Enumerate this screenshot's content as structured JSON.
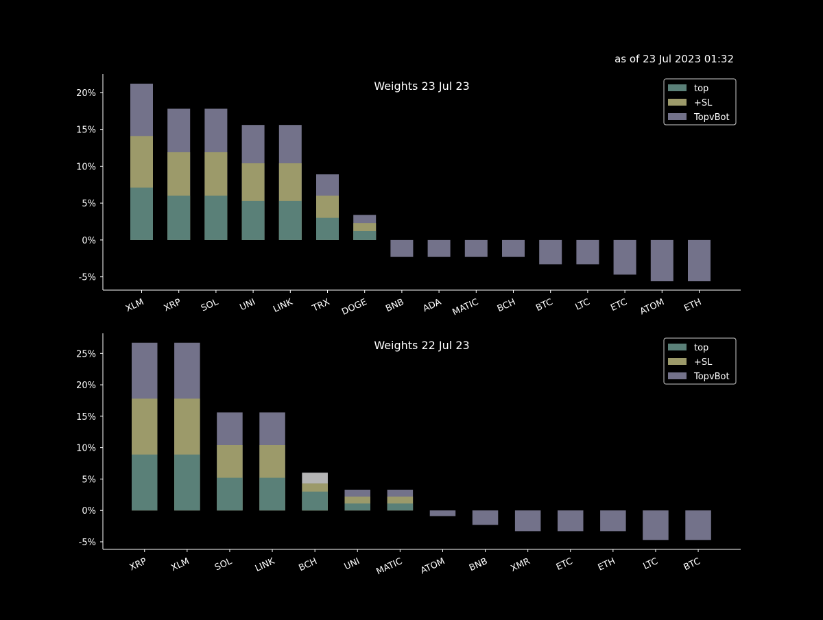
{
  "annotation": "as of 23 Jul 2023 01:32",
  "colors": {
    "background": "#000000",
    "axis": "#ffffff",
    "top": "#5a8078",
    "sl": "#9c9a6a",
    "topvbot": "#73728a",
    "highlight": "#b5b5b5"
  },
  "legend_labels": [
    "top",
    "+SL",
    "TopvBot"
  ],
  "chart_data": [
    {
      "type": "bar",
      "stacked": "overlay",
      "title": "Weights 23 Jul 23",
      "categories": [
        "XLM",
        "XRP",
        "SOL",
        "UNI",
        "LINK",
        "TRX",
        "DOGE",
        "BNB",
        "ADA",
        "MATIC",
        "BCH",
        "BTC",
        "LTC",
        "ETC",
        "ATOM",
        "ETH"
      ],
      "series": [
        {
          "name": "top",
          "values": [
            7.1,
            6.0,
            6.0,
            5.3,
            5.3,
            3.0,
            1.2,
            0,
            0,
            0,
            0,
            0,
            0,
            0,
            0,
            0
          ]
        },
        {
          "name": "+SL",
          "values": [
            14.1,
            11.9,
            11.9,
            10.4,
            10.4,
            6.0,
            2.3,
            0,
            0,
            0,
            0,
            0,
            0,
            0,
            0,
            0
          ]
        },
        {
          "name": "TopvBot",
          "values": [
            21.2,
            17.8,
            17.8,
            15.6,
            15.6,
            8.9,
            3.4,
            -2.3,
            -2.3,
            -2.3,
            -2.3,
            -3.3,
            -3.3,
            -4.7,
            -5.6,
            -5.6
          ]
        }
      ],
      "ylim": [
        -6.8,
        22.5
      ],
      "yticks": [
        -5,
        0,
        5,
        10,
        15,
        20
      ],
      "ytick_format": "%",
      "legend": "top-right",
      "grid": false
    },
    {
      "type": "bar",
      "stacked": "overlay",
      "title": "Weights 22 Jul 23",
      "categories": [
        "XRP",
        "XLM",
        "SOL",
        "LINK",
        "BCH",
        "UNI",
        "MATIC",
        "ATOM",
        "BNB",
        "XMR",
        "ETC",
        "ETH",
        "LTC",
        "BTC"
      ],
      "series": [
        {
          "name": "top",
          "values": [
            8.9,
            8.9,
            5.2,
            5.2,
            3.0,
            1.1,
            1.1,
            0,
            0,
            0,
            0,
            0,
            0,
            0
          ]
        },
        {
          "name": "+SL",
          "values": [
            17.8,
            17.8,
            10.4,
            10.4,
            4.3,
            2.2,
            2.2,
            0,
            0,
            0,
            0,
            0,
            0,
            0
          ]
        },
        {
          "name": "TopvBot",
          "values": [
            26.7,
            26.7,
            15.6,
            15.6,
            6.0,
            3.3,
            3.3,
            -0.9,
            -2.3,
            -3.3,
            -3.3,
            -3.3,
            -4.7,
            -4.7
          ]
        }
      ],
      "highlight": {
        "category": "BCH",
        "value": 6.0
      },
      "ylim": [
        -6.2,
        28.2
      ],
      "yticks": [
        -5,
        0,
        5,
        10,
        15,
        20,
        25
      ],
      "ytick_format": "%",
      "legend": "top-right",
      "grid": false
    }
  ]
}
